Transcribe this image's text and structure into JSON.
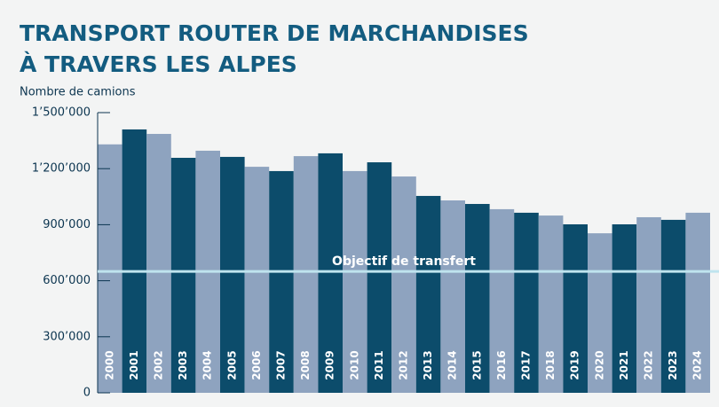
{
  "chart_data": {
    "type": "bar",
    "title": [
      "TRANSPORT ROUTER DE MARCHANDISES",
      "À TRAVERS LES ALPES"
    ],
    "y_label": "Nombre de camions",
    "categories": [
      "2000",
      "2001",
      "2002",
      "2003",
      "2004",
      "2005",
      "2006",
      "2007",
      "2008",
      "2009",
      "2010",
      "2011",
      "2012",
      "2013",
      "2014",
      "2015",
      "2016",
      "2017",
      "2018",
      "2019",
      "2020",
      "2021",
      "2022",
      "2023",
      "2024"
    ],
    "values": [
      1330000,
      1410000,
      1386000,
      1258000,
      1296000,
      1263000,
      1210000,
      1187000,
      1267000,
      1282000,
      1187000,
      1234000,
      1158000,
      1054000,
      1030000,
      1011000,
      983000,
      964000,
      949000,
      902000,
      854000,
      902000,
      940000,
      926000,
      964000
    ],
    "colors": [
      "#8ea3bf",
      "#0c4c6b"
    ],
    "ylim": [
      0,
      1500000
    ],
    "yticks": [
      0,
      {
        "value": 300000,
        "label": "300’000"
      },
      {
        "value": 600000,
        "label": "600’000"
      },
      {
        "value": 900000,
        "label": "900’000"
      },
      {
        "value": 1200000,
        "label": "1’200’000"
      },
      {
        "value": 1500000,
        "label": "1’500’000"
      }
    ],
    "reference_line": {
      "label": "Objectif de transfert",
      "value": 650000,
      "color": "#bfe4ee"
    }
  }
}
